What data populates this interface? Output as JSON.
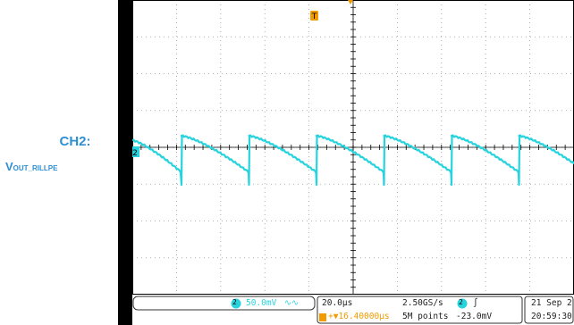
{
  "label": {
    "channel": "CH2:",
    "signal_main": "V",
    "signal_sub": "OUT_RILLPE",
    "color": "#2e8fd3"
  },
  "scope": {
    "trace_color": "#27d3dd",
    "trigger_color": "#f29b00",
    "ch_marker": "2",
    "trigger_marker": "T"
  },
  "statusbar": {
    "ch_badge": "2",
    "volts_div": "50.0mV",
    "bw_symbol": "∿∿",
    "time_div": "20.0μs",
    "trigger_offset": "+▼16.40000μs",
    "sample_rate": "2.50GS/s",
    "record_length": "5M points",
    "trig_ch_badge": "2",
    "trig_slope": "∫",
    "trig_level": "-23.0mV",
    "date": "21 Sep 2",
    "time": "20:59:30"
  }
}
